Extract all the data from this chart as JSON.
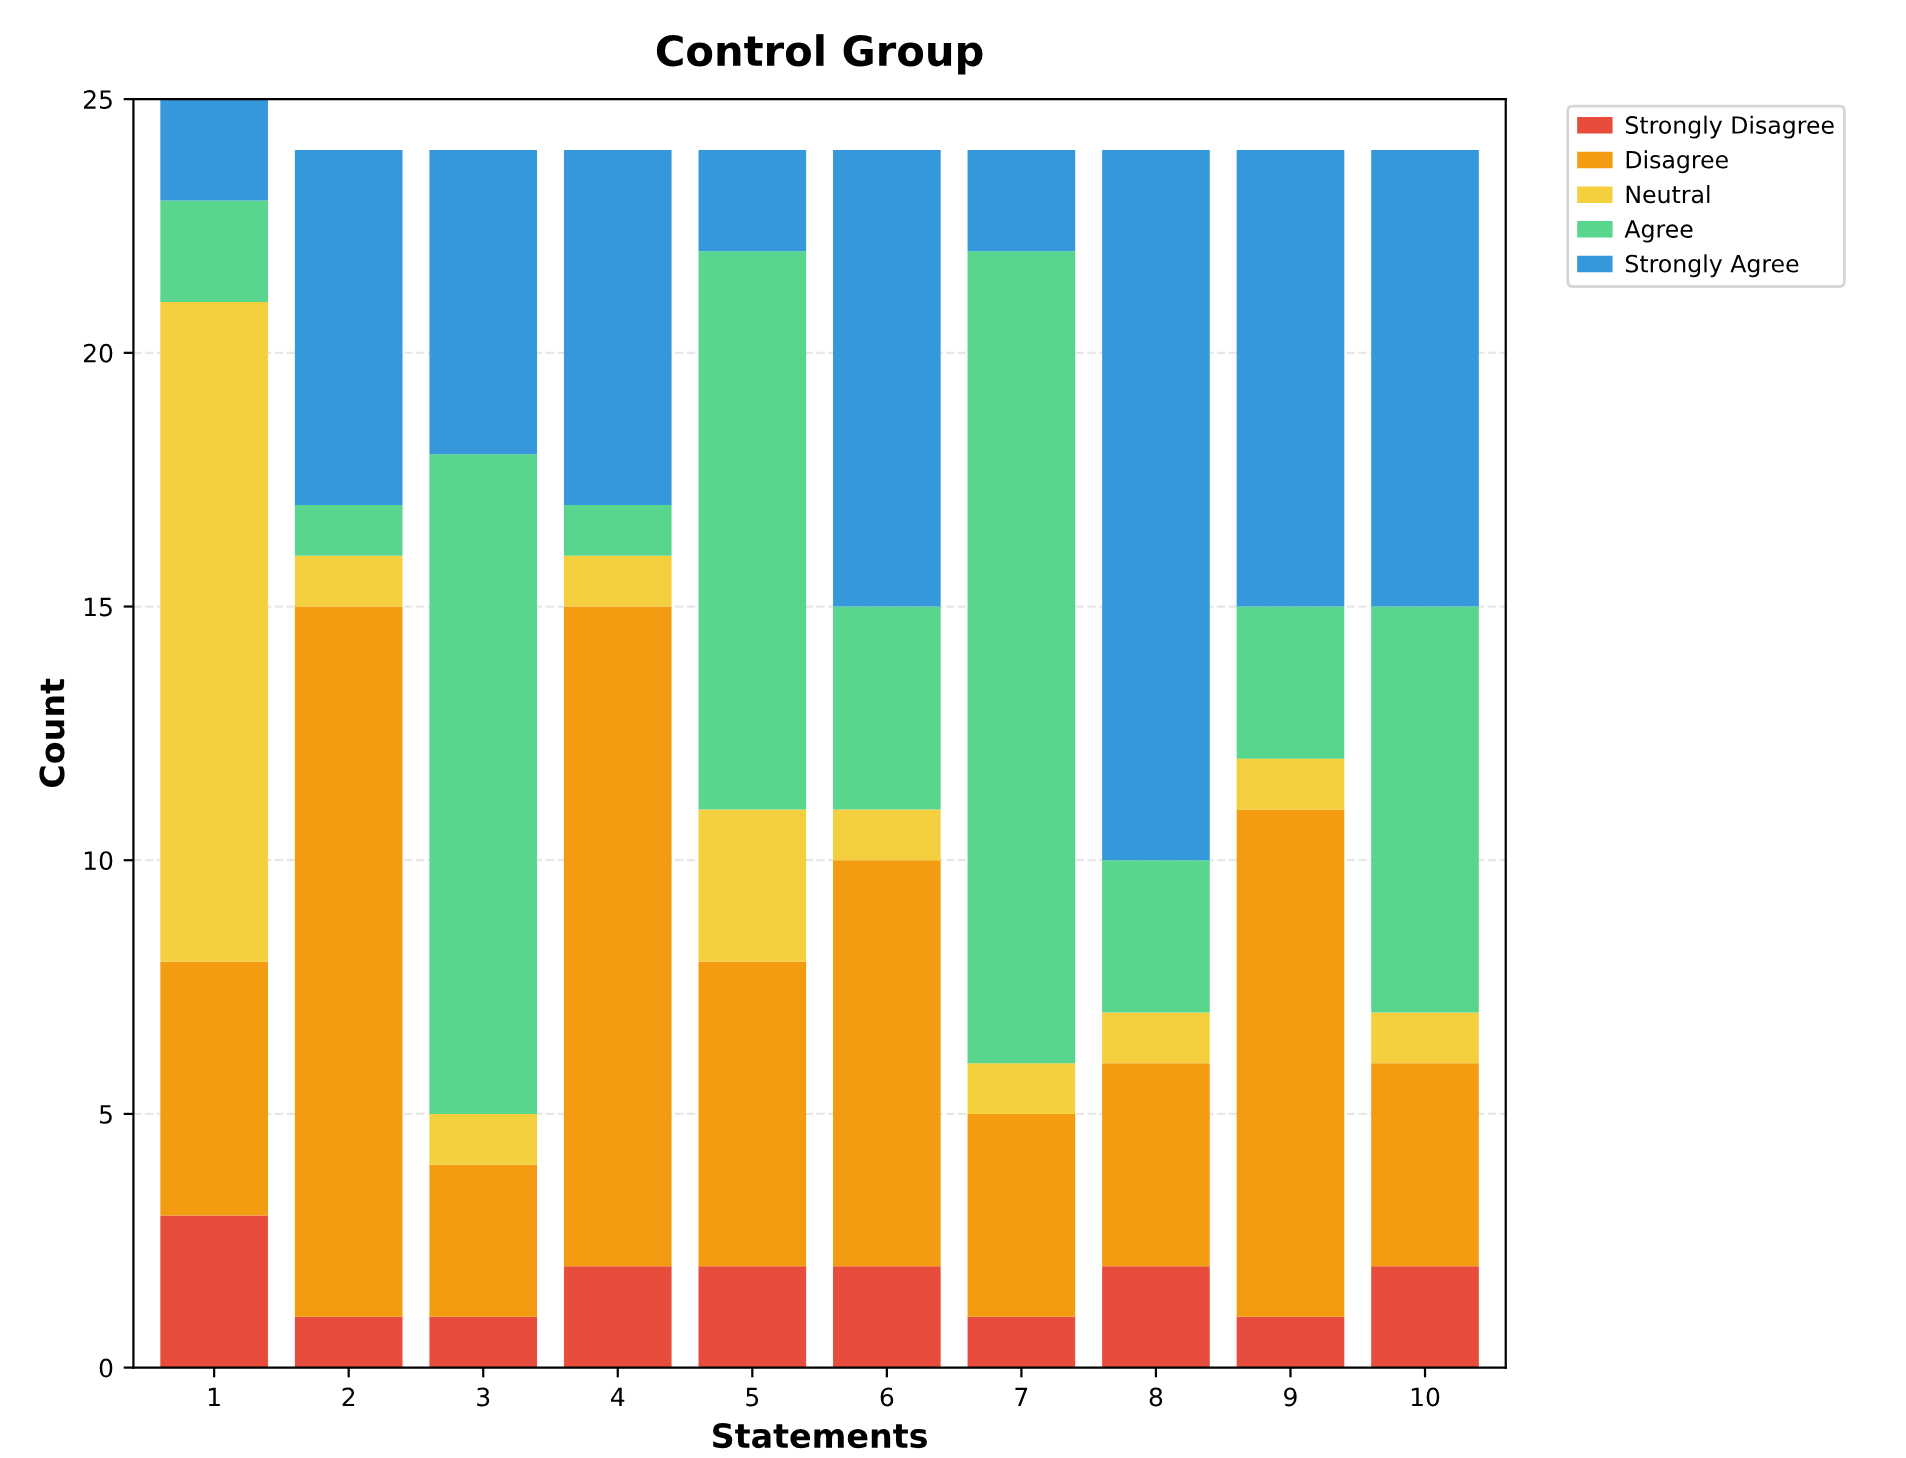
{
  "chart_data": {
    "type": "bar",
    "title": "Control Group",
    "xlabel": "Statements",
    "ylabel": "Count",
    "categories": [
      "1",
      "2",
      "3",
      "4",
      "5",
      "6",
      "7",
      "8",
      "9",
      "10"
    ],
    "stacked": true,
    "ylim": [
      0,
      25
    ],
    "yticks": [
      0,
      5,
      10,
      15,
      20,
      25
    ],
    "grid": "y",
    "legend": "top right",
    "series": [
      {
        "name": "Strongly Disagree",
        "color": "#e74c3c",
        "values": [
          3,
          1,
          1,
          2,
          2,
          2,
          1,
          2,
          1,
          2
        ]
      },
      {
        "name": "Disagree",
        "color": "#f39c12",
        "values": [
          5,
          14,
          3,
          13,
          6,
          8,
          4,
          4,
          10,
          4
        ]
      },
      {
        "name": "Neutral",
        "color": "#f4d03f",
        "values": [
          13,
          1,
          1,
          1,
          3,
          1,
          1,
          1,
          1,
          1
        ]
      },
      {
        "name": "Agree",
        "color": "#58d68d",
        "values": [
          2,
          1,
          13,
          1,
          11,
          4,
          16,
          3,
          3,
          8
        ]
      },
      {
        "name": "Strongly Agree",
        "color": "#3498db",
        "values": [
          2,
          7,
          6,
          7,
          2,
          9,
          2,
          14,
          9,
          9
        ]
      }
    ]
  }
}
